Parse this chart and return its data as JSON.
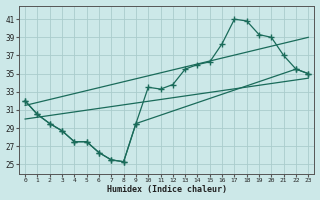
{
  "background_color": "#cce8e8",
  "grid_color": "#aacccc",
  "line_color": "#1a6b5a",
  "xlabel": "Humidex (Indice chaleur)",
  "xlim": [
    -0.5,
    23.5
  ],
  "ylim": [
    24,
    42.5
  ],
  "yticks": [
    25,
    27,
    29,
    31,
    33,
    35,
    37,
    39,
    41
  ],
  "xticks": [
    0,
    1,
    2,
    3,
    4,
    5,
    6,
    7,
    8,
    9,
    10,
    11,
    12,
    13,
    14,
    15,
    16,
    17,
    18,
    19,
    20,
    21,
    22,
    23
  ],
  "curve_x": [
    0,
    1,
    2,
    3,
    4,
    5,
    6,
    7,
    8,
    9,
    10,
    11,
    12,
    13,
    14,
    15,
    16,
    17,
    18,
    19,
    20,
    21,
    22,
    23
  ],
  "curve_y": [
    32.0,
    30.5,
    29.5,
    28.7,
    27.5,
    27.5,
    26.3,
    25.5,
    25.3,
    29.5,
    33.5,
    33.3,
    33.8,
    35.5,
    36.0,
    36.3,
    38.3,
    41.0,
    40.8,
    39.3,
    39.0,
    37.0,
    35.5,
    35.0
  ],
  "trend1_x": [
    0,
    23
  ],
  "trend1_y": [
    31.5,
    39.0
  ],
  "trend2_x": [
    0,
    23
  ],
  "trend2_y": [
    30.0,
    34.5
  ],
  "lower_curve_x": [
    0,
    1,
    2,
    3,
    4,
    5,
    6,
    7,
    8,
    9,
    22,
    23
  ],
  "lower_curve_y": [
    32.0,
    30.5,
    29.5,
    28.7,
    27.5,
    27.5,
    26.3,
    25.5,
    25.3,
    29.5,
    35.5,
    35.0
  ]
}
